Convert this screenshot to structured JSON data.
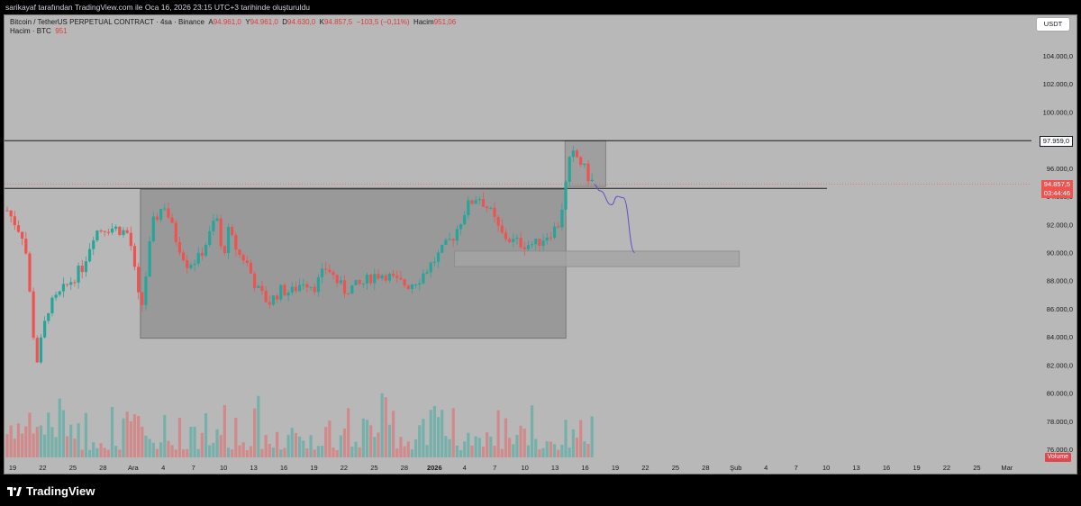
{
  "topbar": {
    "text": "sarikayaf tarafından TradingView.com ile Oca 16, 2026 23:15 UTC+3 tarihinde oluşturuldu"
  },
  "legend": {
    "symbol": "Bitcoin / TetherUS PERPETUAL CONTRACT · 4sa · Binance",
    "open_label": "A",
    "open_value": "94.961,0",
    "high_label": "Y",
    "high_value": "94.961,0",
    "low_label": "D",
    "low_value": "94.630,0",
    "close_label": "K",
    "close_value": "94.857,5",
    "change": "−103,5 (−0,11%)",
    "volume_label": "Hacim",
    "volume_value": "951,06",
    "volume_row_label": "Hacim · BTC",
    "volume_row_value": "951"
  },
  "currency_button": "USDT",
  "price_tags": {
    "level": "97.959,0",
    "current_price": "94.857,5",
    "countdown": "03:44:46"
  },
  "volume_badge": "Volume",
  "brand": "TradingView",
  "colors": {
    "up": "#26a69a",
    "down": "#ef5350",
    "box": "#808080",
    "projection": "#5b52c8"
  },
  "chart_data": {
    "type": "candlestick",
    "y_axis": {
      "range": [
        75000,
        106000
      ],
      "ticks": [
        104000,
        102000,
        100000,
        98000,
        96000,
        94000,
        92000,
        90000,
        88000,
        86000,
        84000,
        82000,
        80000,
        78000,
        76000
      ],
      "tick_labels": [
        "104.000,0",
        "102.000,0",
        "100.000,0",
        "98.000,0",
        "96.000,0",
        "94.000,0",
        "92.000,0",
        "90.000,0",
        "88.000,0",
        "86.000,0",
        "84.000,0",
        "82.000,0",
        "80.000,0",
        "78.000,0",
        "76.000,0"
      ]
    },
    "x_axis": {
      "labels": [
        "19",
        "22",
        "25",
        "28",
        "Ara",
        "4",
        "7",
        "10",
        "13",
        "16",
        "19",
        "22",
        "25",
        "28",
        "2026",
        "4",
        "7",
        "10",
        "13",
        "16",
        "19",
        "22",
        "25",
        "28",
        "Şub",
        "4",
        "7",
        "10",
        "13",
        "16",
        "19",
        "22",
        "25",
        "Mar"
      ]
    },
    "price_path": [
      [
        0,
        93000
      ],
      [
        3,
        91000
      ],
      [
        5,
        82000
      ],
      [
        7,
        86000
      ],
      [
        10,
        87500
      ],
      [
        13,
        89000
      ],
      [
        15,
        91500
      ],
      [
        17,
        91800
      ],
      [
        19,
        91700
      ],
      [
        21,
        91300
      ],
      [
        23,
        85600
      ],
      [
        25,
        92000
      ],
      [
        27,
        93500
      ],
      [
        29,
        91000
      ],
      [
        31,
        89200
      ],
      [
        33,
        89600
      ],
      [
        35,
        91400
      ],
      [
        36,
        92800
      ],
      [
        37,
        89500
      ],
      [
        38,
        91500
      ],
      [
        40,
        89800
      ],
      [
        41,
        89500
      ],
      [
        43,
        87400
      ],
      [
        45,
        86400
      ],
      [
        47,
        87300
      ],
      [
        49,
        87200
      ],
      [
        51,
        88000
      ],
      [
        53,
        87600
      ],
      [
        55,
        89000
      ],
      [
        57,
        87800
      ],
      [
        58,
        87300
      ],
      [
        59,
        87500
      ],
      [
        61,
        87700
      ],
      [
        63,
        88400
      ],
      [
        65,
        88500
      ],
      [
        67,
        87900
      ],
      [
        69,
        87700
      ],
      [
        71,
        88200
      ],
      [
        73,
        89200
      ],
      [
        75,
        90200
      ],
      [
        77,
        91300
      ],
      [
        79,
        93200
      ],
      [
        81,
        94100
      ],
      [
        83,
        93000
      ],
      [
        85,
        91300
      ],
      [
        87,
        90800
      ],
      [
        89,
        90600
      ],
      [
        91,
        90600
      ],
      [
        93,
        91300
      ],
      [
        94,
        91600
      ],
      [
        95,
        92100
      ],
      [
        96,
        94500
      ],
      [
        97,
        97000
      ],
      [
        98,
        96800
      ],
      [
        99,
        96200
      ],
      [
        100,
        95400
      ],
      [
        101,
        94857
      ]
    ],
    "volumes": "random-decreasing",
    "level_line": 97959,
    "range_high": 94500,
    "range_box": {
      "x_start": 22,
      "x_end": 96,
      "low": 83900,
      "high": 94500
    },
    "top_box": {
      "x_start": 96,
      "x_end": 103,
      "low": 94700,
      "high": 97959
    },
    "target_box": {
      "x_start": 77,
      "x_end": 126,
      "low": 89000,
      "high": 90100
    },
    "projection": [
      [
        101,
        94857
      ],
      [
        102,
        94400
      ],
      [
        104,
        93400
      ],
      [
        105,
        94000
      ],
      [
        106,
        93900
      ],
      [
        108,
        90000
      ]
    ],
    "current_price": 94857.5
  }
}
